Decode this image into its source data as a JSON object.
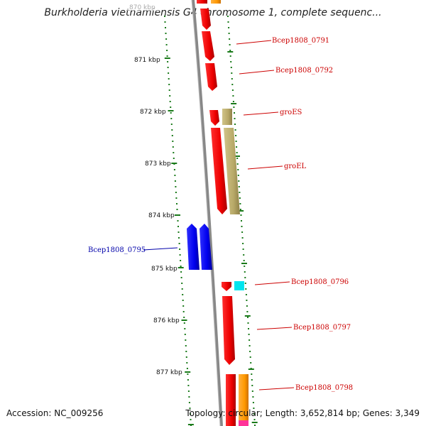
{
  "title": "Burkholderia vietnamiensis G4 chromosome 1, complete sequenc...",
  "top_scale_label": "870 kbp",
  "scale_labels": [
    "871 kbp",
    "872 kbp",
    "873 kbp",
    "874 kbp",
    "875 kbp",
    "876 kbp",
    "877 kbp"
  ],
  "gene_labels": [
    {
      "text": "Bcep1808_0791",
      "color": "#cc0000"
    },
    {
      "text": "Bcep1808_0792",
      "color": "#cc0000"
    },
    {
      "text": "groES",
      "color": "#cc0000"
    },
    {
      "text": "groEL",
      "color": "#cc0000"
    },
    {
      "text": "Bcep1808_0795",
      "color": "#0000aa"
    },
    {
      "text": "Bcep1808_0796",
      "color": "#cc0000"
    },
    {
      "text": "Bcep1808_0797",
      "color": "#cc0000"
    },
    {
      "text": "Bcep1808_0798",
      "color": "#cc0000"
    }
  ],
  "footer": {
    "accession": "Accession: NC_009256",
    "topology": "Topology: circular; Length: 3,652,814 bp; Genes: 3,349"
  },
  "colors": {
    "forward_gene": "#ee0000",
    "reverse_gene": "#0000ee",
    "groES_EL_partner": "#b8a968",
    "cyan_gene": "#00e5ee",
    "orange_gene": "#ff9900",
    "tick": "#1a7a1a",
    "backbone": "#888888"
  }
}
